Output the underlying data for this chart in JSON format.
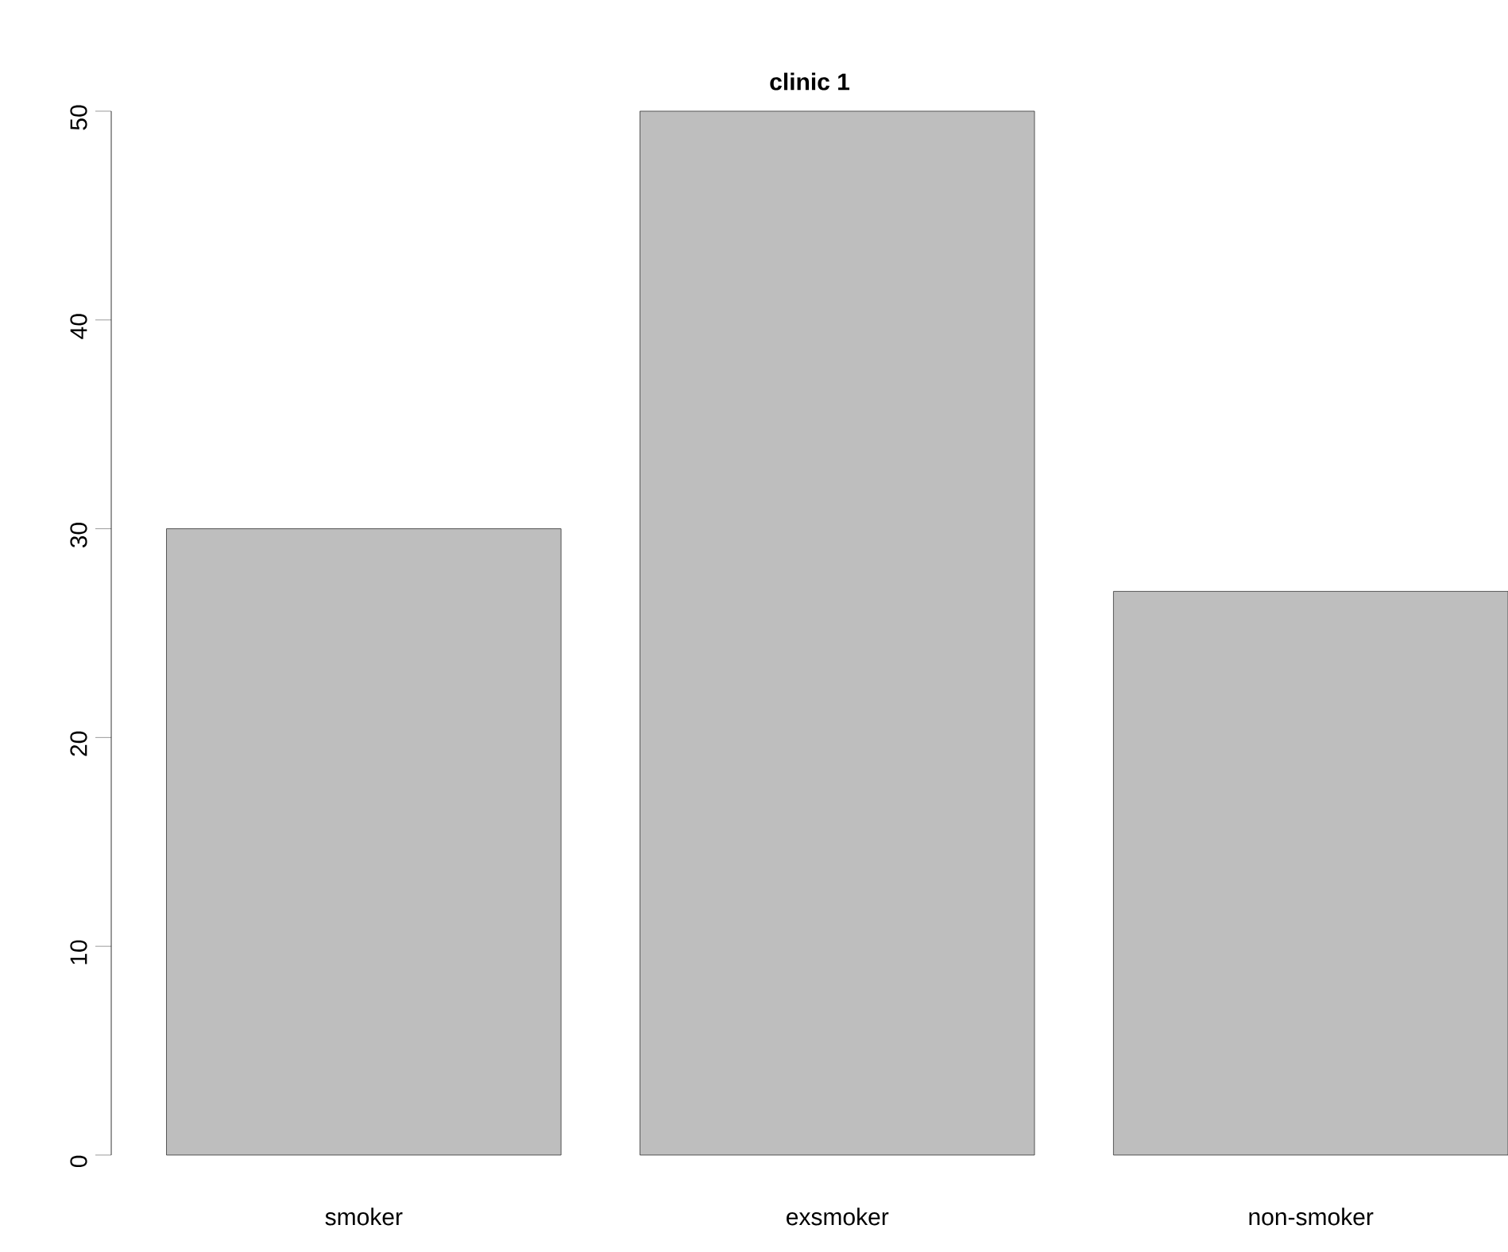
{
  "chart_data": {
    "type": "bar",
    "title": "clinic 1",
    "categories": [
      "smoker",
      "exsmoker",
      "non-smoker"
    ],
    "values": [
      30,
      50,
      27
    ],
    "color": "#bebebe",
    "ylim": [
      0,
      50
    ],
    "yticks": [
      0,
      10,
      20,
      30,
      40,
      50
    ]
  }
}
